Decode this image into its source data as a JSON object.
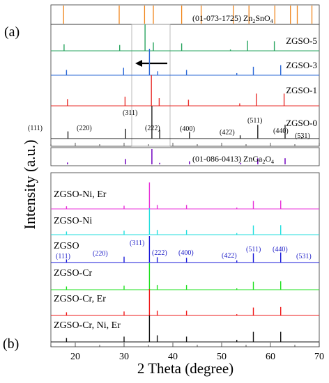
{
  "panel_labels": {
    "a": "(a)",
    "b": "(b)"
  },
  "ylabel": "Intensity (a.u.)",
  "xlabel": "2 Theta (degree)",
  "chart_data": [
    {
      "type": "line",
      "panel": "(a)",
      "xlim": [
        15,
        70
      ],
      "ticks": [
        20,
        30,
        40,
        50,
        60,
        70
      ],
      "reference_top": {
        "name": "(01-073-1725) Zn2SnO4",
        "color": "#f0861c",
        "x": [
          17.6,
          29.0,
          34.2,
          36.0,
          41.8,
          45.8,
          52.4,
          55.6,
          60.9,
          64.1,
          65.5,
          68.5
        ],
        "values": [
          1,
          1,
          1,
          1,
          1,
          1,
          1,
          1,
          1,
          1,
          1,
          1
        ]
      },
      "series": [
        {
          "name": "ZGSO-5",
          "color": "#2aa560",
          "x": [
            17.7,
            29.1,
            34.3,
            36.0,
            41.8,
            51.8,
            55.3,
            60.8
          ],
          "values": [
            0.25,
            0.22,
            1.0,
            0.32,
            0.28,
            0.05,
            0.38,
            0.36
          ]
        },
        {
          "name": "ZGSO-3",
          "color": "#2b68d6",
          "x": [
            18.2,
            29.9,
            35.2,
            36.9,
            42.8,
            53.1,
            56.5,
            62.1
          ],
          "values": [
            0.2,
            0.28,
            1.0,
            0.15,
            0.2,
            0.08,
            0.32,
            0.38
          ]
        },
        {
          "name": "ZGSO-1",
          "color": "#e8312e",
          "x": [
            18.4,
            30.2,
            35.6,
            37.2,
            43.2,
            53.7,
            57.1,
            62.8
          ],
          "values": [
            0.22,
            0.3,
            1.0,
            0.25,
            0.2,
            0.08,
            0.4,
            0.4
          ]
        },
        {
          "name": "ZGSO-0",
          "color": "#222222",
          "x": [
            18.5,
            30.3,
            35.7,
            37.3,
            43.4,
            53.8,
            57.4,
            63.0,
            66.4
          ],
          "values": [
            0.22,
            0.3,
            1.0,
            0.27,
            0.2,
            0.1,
            0.42,
            0.42,
            0.04
          ]
        }
      ],
      "reference_bottom": {
        "name": "(01-086-0413) ZnGa2O4",
        "color": "#7b14c4",
        "x": [
          18.4,
          30.3,
          35.7,
          37.3,
          43.4,
          53.9,
          57.4,
          63.0
        ],
        "values": [
          0.12,
          0.35,
          1.0,
          0.1,
          0.2,
          0.1,
          0.4,
          0.4
        ]
      },
      "annotations": [
        "(111)",
        "(220)",
        "(311)",
        "(222)",
        "(400)",
        "(422)",
        "(511)",
        "(440)",
        "(531)"
      ]
    },
    {
      "type": "line",
      "panel": "(b)",
      "xlim": [
        15,
        70
      ],
      "ticks": [
        20,
        30,
        40,
        50,
        60,
        70
      ],
      "series": [
        {
          "name": "ZGSO-Ni, Er",
          "color": "#e830d8",
          "x": [
            18.2,
            30.0,
            35.2,
            36.8,
            42.8,
            53.1,
            56.5,
            62.1
          ],
          "values": [
            0.1,
            0.12,
            1.0,
            0.15,
            0.15,
            0.05,
            0.3,
            0.32
          ]
        },
        {
          "name": "ZGSO-Ni",
          "color": "#22dede",
          "x": [
            18.2,
            30.0,
            35.2,
            36.8,
            42.8,
            53.1,
            56.5,
            62.1
          ],
          "values": [
            0.12,
            0.15,
            1.0,
            0.18,
            0.18,
            0.06,
            0.35,
            0.36
          ]
        },
        {
          "name": "ZGSO",
          "color": "#1818d8",
          "x": [
            18.2,
            30.0,
            35.2,
            36.8,
            42.8,
            53.1,
            56.5,
            62.1
          ],
          "values": [
            0.12,
            0.22,
            1.0,
            0.2,
            0.18,
            0.08,
            0.35,
            0.38
          ]
        },
        {
          "name": "ZGSO-Cr",
          "color": "#1ee01e",
          "x": [
            18.2,
            30.0,
            35.2,
            36.8,
            42.8,
            53.1,
            56.5,
            62.1
          ],
          "values": [
            0.12,
            0.15,
            1.0,
            0.18,
            0.18,
            0.05,
            0.3,
            0.32
          ]
        },
        {
          "name": "ZGSO-Cr, Er",
          "color": "#ee1818",
          "x": [
            18.2,
            30.0,
            35.2,
            36.8,
            42.8,
            53.1,
            56.5,
            62.1
          ],
          "values": [
            0.12,
            0.15,
            1.0,
            0.18,
            0.18,
            0.05,
            0.3,
            0.32
          ]
        },
        {
          "name": "ZGSO-Cr, Ni, Er",
          "color": "#111111",
          "x": [
            18.2,
            30.0,
            35.2,
            36.8,
            42.8,
            53.1,
            56.5,
            62.1
          ],
          "values": [
            0.15,
            0.2,
            1.0,
            0.25,
            0.2,
            0.08,
            0.38,
            0.38
          ]
        }
      ],
      "annotations": [
        "(111)",
        "(220)",
        "(311)",
        "(222)",
        "(400)",
        "(422)",
        "(511)",
        "(440)",
        "(531)"
      ]
    }
  ]
}
